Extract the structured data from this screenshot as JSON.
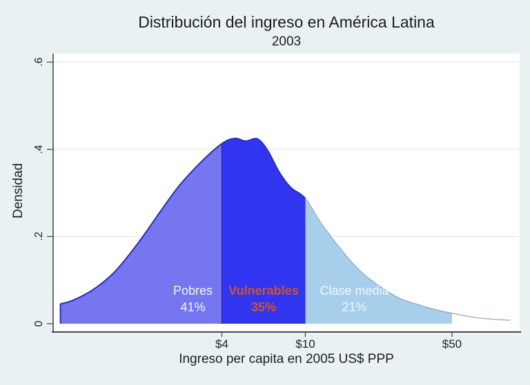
{
  "figure": {
    "title": "Distribución del ingreso en América Latina",
    "subtitle": "2003",
    "background": "#e9f1f2",
    "plot_background": "#ffffff"
  },
  "x_axis": {
    "title": "Ingreso per capita en 2005 US$ PPP",
    "scale": "log",
    "ticks": [
      {
        "value": 4,
        "label": "$4"
      },
      {
        "value": 10,
        "label": "$10"
      },
      {
        "value": 50,
        "label": "$50"
      }
    ]
  },
  "y_axis": {
    "title": "Densidad",
    "ticks": [
      {
        "value": 0,
        "label": "0"
      },
      {
        "value": 0.2,
        "label": ".2"
      },
      {
        "value": 0.4,
        "label": ".4"
      },
      {
        "value": 0.6,
        "label": ".6"
      }
    ]
  },
  "colors": {
    "grid": "#e3e9ec",
    "axis": "#4a4a4a",
    "curve_outline": "#2a2cbb",
    "curve_tail": "#9fa8ae"
  },
  "chart_data": {
    "type": "area",
    "title": "Distribución del ingreso en América Latina",
    "subtitle": "2003",
    "xlabel": "Ingreso per capita en 2005 US$ PPP",
    "ylabel": "Densidad",
    "x_scale": "log",
    "xlim": [
      0.63,
      98
    ],
    "ylim": [
      0,
      0.6
    ],
    "grid": true,
    "legend": "none",
    "density_curve": {
      "income": [
        0.68,
        0.8,
        1.0,
        1.25,
        1.6,
        2.0,
        2.5,
        3.2,
        4.0,
        4.6,
        5.2,
        5.9,
        6.6,
        7.5,
        8.5,
        10,
        12,
        15,
        18,
        22,
        28,
        35,
        42,
        50,
        65,
        80,
        95
      ],
      "density": [
        0.045,
        0.056,
        0.082,
        0.122,
        0.186,
        0.252,
        0.316,
        0.372,
        0.413,
        0.425,
        0.419,
        0.424,
        0.398,
        0.348,
        0.313,
        0.287,
        0.228,
        0.167,
        0.124,
        0.09,
        0.059,
        0.043,
        0.032,
        0.024,
        0.014,
        0.01,
        0.008
      ]
    },
    "segments": [
      {
        "label": "Pobres",
        "share": "41%",
        "income_from": 0.68,
        "income_to": 4,
        "fill": "#7576f0",
        "label_color": "#f4f6ff",
        "bold": false
      },
      {
        "label": "Vulnerables",
        "share": "35%",
        "income_from": 4,
        "income_to": 10,
        "fill": "#3235f0",
        "label_color": "#d1512d",
        "bold": true
      },
      {
        "label": "Clase media",
        "share": "21%",
        "income_from": 10,
        "income_to": 50,
        "fill": "#a7cfeb",
        "label_color": "#eef6fd",
        "bold": false
      }
    ]
  }
}
